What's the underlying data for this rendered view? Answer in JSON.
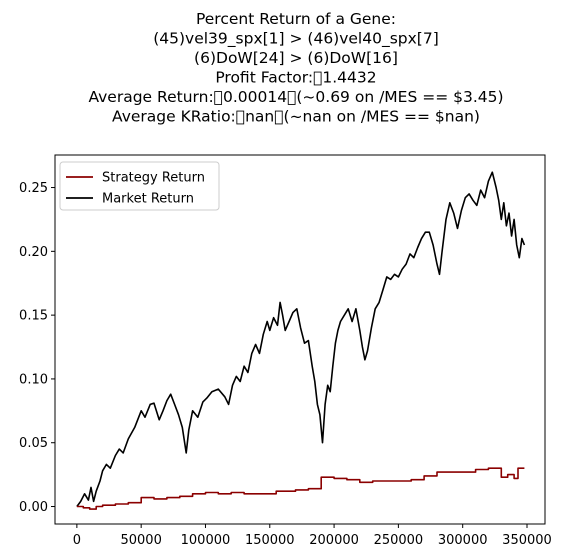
{
  "chart_data": {
    "type": "line",
    "title_lines": [
      "Percent Return of a Gene:",
      "(45)vel39_spx[1] > (46)vel40_spx[7]",
      "(6)DoW[24] > (6)DoW[16]",
      "Profit Factor:\u00001.4432",
      "Average Return:\u00000.00014\u0000(~0.69 on /MES == $3.45)",
      "Average KRatio:\u0000nan\u0000(~nan on /MES == $nan)"
    ],
    "xlabel": "",
    "ylabel": "",
    "xlim": [
      -17000,
      364000
    ],
    "ylim": [
      -0.0137,
      0.2755
    ],
    "x_ticks": [
      0,
      50000,
      100000,
      150000,
      200000,
      250000,
      300000,
      350000
    ],
    "x_tick_labels": [
      "0",
      "50000",
      "100000",
      "150000",
      "200000",
      "250000",
      "300000",
      "350000"
    ],
    "y_ticks": [
      0.0,
      0.05,
      0.1,
      0.15,
      0.2,
      0.25
    ],
    "y_tick_labels": [
      "0.00",
      "0.05",
      "0.10",
      "0.15",
      "0.20",
      "0.25"
    ],
    "grid": false,
    "legend_position": "top-left",
    "series": [
      {
        "name": "Strategy Return",
        "color": "#8b0000",
        "style": "step",
        "points": [
          [
            0,
            0.0
          ],
          [
            5000,
            -0.001
          ],
          [
            10000,
            -0.002
          ],
          [
            15000,
            0.0
          ],
          [
            20000,
            0.001
          ],
          [
            30000,
            0.002
          ],
          [
            40000,
            0.003
          ],
          [
            50000,
            0.007
          ],
          [
            60000,
            0.006
          ],
          [
            70000,
            0.007
          ],
          [
            80000,
            0.008
          ],
          [
            90000,
            0.01
          ],
          [
            100000,
            0.011
          ],
          [
            110000,
            0.01
          ],
          [
            120000,
            0.011
          ],
          [
            130000,
            0.01
          ],
          [
            140000,
            0.01
          ],
          [
            155000,
            0.012
          ],
          [
            170000,
            0.013
          ],
          [
            180000,
            0.014
          ],
          [
            190000,
            0.023
          ],
          [
            200000,
            0.022
          ],
          [
            210000,
            0.021
          ],
          [
            220000,
            0.019
          ],
          [
            230000,
            0.02
          ],
          [
            250000,
            0.02
          ],
          [
            260000,
            0.021
          ],
          [
            270000,
            0.024
          ],
          [
            280000,
            0.027
          ],
          [
            290000,
            0.027
          ],
          [
            300000,
            0.027
          ],
          [
            310000,
            0.029
          ],
          [
            320000,
            0.03
          ],
          [
            330000,
            0.023
          ],
          [
            335000,
            0.025
          ],
          [
            340000,
            0.022
          ],
          [
            343000,
            0.03
          ],
          [
            348000,
            0.03
          ]
        ]
      },
      {
        "name": "Market Return",
        "color": "#000000",
        "style": "line",
        "points": [
          [
            0,
            0.0
          ],
          [
            3000,
            0.004
          ],
          [
            6000,
            0.01
          ],
          [
            9000,
            0.005
          ],
          [
            11000,
            0.015
          ],
          [
            13000,
            0.004
          ],
          [
            15000,
            0.012
          ],
          [
            18000,
            0.02
          ],
          [
            20000,
            0.028
          ],
          [
            23000,
            0.033
          ],
          [
            26000,
            0.03
          ],
          [
            30000,
            0.04
          ],
          [
            33000,
            0.045
          ],
          [
            36000,
            0.042
          ],
          [
            40000,
            0.053
          ],
          [
            45000,
            0.062
          ],
          [
            50000,
            0.075
          ],
          [
            53000,
            0.07
          ],
          [
            57000,
            0.08
          ],
          [
            60000,
            0.081
          ],
          [
            64000,
            0.068
          ],
          [
            67000,
            0.075
          ],
          [
            70000,
            0.083
          ],
          [
            73000,
            0.088
          ],
          [
            76000,
            0.08
          ],
          [
            79000,
            0.072
          ],
          [
            82000,
            0.062
          ],
          [
            85000,
            0.042
          ],
          [
            87000,
            0.06
          ],
          [
            90000,
            0.075
          ],
          [
            94000,
            0.07
          ],
          [
            98000,
            0.082
          ],
          [
            101000,
            0.085
          ],
          [
            105000,
            0.09
          ],
          [
            110000,
            0.092
          ],
          [
            115000,
            0.086
          ],
          [
            118000,
            0.08
          ],
          [
            121000,
            0.095
          ],
          [
            124000,
            0.102
          ],
          [
            127000,
            0.098
          ],
          [
            130000,
            0.11
          ],
          [
            133000,
            0.105
          ],
          [
            136000,
            0.12
          ],
          [
            139000,
            0.127
          ],
          [
            142000,
            0.12
          ],
          [
            145000,
            0.135
          ],
          [
            148000,
            0.145
          ],
          [
            150000,
            0.138
          ],
          [
            153000,
            0.148
          ],
          [
            156000,
            0.142
          ],
          [
            158000,
            0.16
          ],
          [
            160000,
            0.15
          ],
          [
            162000,
            0.138
          ],
          [
            165000,
            0.145
          ],
          [
            168000,
            0.152
          ],
          [
            171000,
            0.155
          ],
          [
            174000,
            0.14
          ],
          [
            177000,
            0.128
          ],
          [
            180000,
            0.13
          ],
          [
            183000,
            0.11
          ],
          [
            185000,
            0.098
          ],
          [
            187000,
            0.08
          ],
          [
            189000,
            0.072
          ],
          [
            191000,
            0.05
          ],
          [
            193000,
            0.08
          ],
          [
            195000,
            0.095
          ],
          [
            197000,
            0.09
          ],
          [
            199000,
            0.11
          ],
          [
            201000,
            0.128
          ],
          [
            203000,
            0.138
          ],
          [
            205000,
            0.145
          ],
          [
            208000,
            0.15
          ],
          [
            211000,
            0.155
          ],
          [
            214000,
            0.145
          ],
          [
            217000,
            0.155
          ],
          [
            220000,
            0.138
          ],
          [
            222000,
            0.125
          ],
          [
            224000,
            0.115
          ],
          [
            226000,
            0.122
          ],
          [
            229000,
            0.14
          ],
          [
            232000,
            0.155
          ],
          [
            235000,
            0.16
          ],
          [
            238000,
            0.17
          ],
          [
            241000,
            0.18
          ],
          [
            244000,
            0.178
          ],
          [
            247000,
            0.182
          ],
          [
            250000,
            0.18
          ],
          [
            253000,
            0.186
          ],
          [
            256000,
            0.19
          ],
          [
            259000,
            0.198
          ],
          [
            262000,
            0.195
          ],
          [
            265000,
            0.203
          ],
          [
            268000,
            0.21
          ],
          [
            271000,
            0.215
          ],
          [
            274000,
            0.215
          ],
          [
            277000,
            0.205
          ],
          [
            280000,
            0.19
          ],
          [
            282000,
            0.182
          ],
          [
            284000,
            0.2
          ],
          [
            287000,
            0.225
          ],
          [
            290000,
            0.238
          ],
          [
            293000,
            0.23
          ],
          [
            296000,
            0.218
          ],
          [
            299000,
            0.232
          ],
          [
            302000,
            0.242
          ],
          [
            305000,
            0.245
          ],
          [
            308000,
            0.24
          ],
          [
            311000,
            0.236
          ],
          [
            314000,
            0.248
          ],
          [
            317000,
            0.242
          ],
          [
            320000,
            0.255
          ],
          [
            323000,
            0.262
          ],
          [
            326000,
            0.25
          ],
          [
            328000,
            0.24
          ],
          [
            330000,
            0.225
          ],
          [
            332000,
            0.238
          ],
          [
            334000,
            0.22
          ],
          [
            336000,
            0.23
          ],
          [
            338000,
            0.212
          ],
          [
            340000,
            0.225
          ],
          [
            342000,
            0.205
          ],
          [
            344000,
            0.195
          ],
          [
            346000,
            0.21
          ],
          [
            348000,
            0.205
          ]
        ]
      }
    ]
  }
}
